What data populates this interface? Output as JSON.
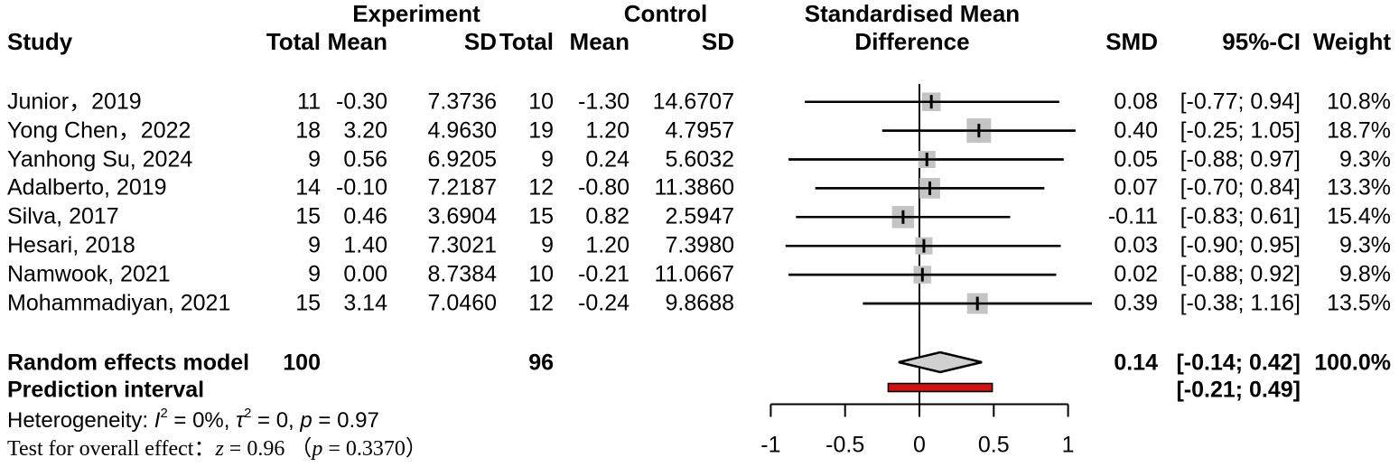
{
  "header": {
    "row1": {
      "experiment_group": "Experiment",
      "control_group": "Control",
      "plot_title_line1": "Standardised Mean"
    },
    "row2": {
      "study": "Study",
      "exp_total": "Total",
      "exp_mean": "Mean",
      "exp_sd": "SD",
      "ctl_total": "Total",
      "ctl_mean": "Mean",
      "ctl_sd": "SD",
      "plot_title_line2": "Difference",
      "smd": "SMD",
      "ci": "95%-CI",
      "weight": "Weight"
    }
  },
  "chart_data": {
    "type": "forest",
    "title": "Standardised Mean Difference",
    "x_axis": {
      "range": [
        -1,
        1
      ],
      "ticks": [
        -1,
        -0.5,
        0,
        0.5,
        1
      ],
      "tick_labels": [
        "-1",
        "-0.5",
        "0",
        "0.5",
        "1"
      ],
      "reference_line": 0
    },
    "studies": [
      {
        "name": "Junior，2019",
        "exp_total": "11",
        "exp_mean": "-0.30",
        "exp_sd": "7.3736",
        "ctl_total": "10",
        "ctl_mean": "-1.30",
        "ctl_sd": "14.6707",
        "smd": 0.08,
        "ci_low": -0.77,
        "ci_high": 0.94,
        "smd_text": "0.08",
        "ci_text": "[-0.77; 0.94]",
        "weight": 10.8,
        "weight_text": "10.8%"
      },
      {
        "name": "Yong Chen，2022",
        "exp_total": "18",
        "exp_mean": "3.20",
        "exp_sd": "4.9630",
        "ctl_total": "19",
        "ctl_mean": "1.20",
        "ctl_sd": "4.7957",
        "smd": 0.4,
        "ci_low": -0.25,
        "ci_high": 1.05,
        "smd_text": "0.40",
        "ci_text": "[-0.25; 1.05]",
        "weight": 18.7,
        "weight_text": "18.7%"
      },
      {
        "name": "Yanhong Su, 2024",
        "exp_total": "9",
        "exp_mean": "0.56",
        "exp_sd": "6.9205",
        "ctl_total": "9",
        "ctl_mean": "0.24",
        "ctl_sd": "5.6032",
        "smd": 0.05,
        "ci_low": -0.88,
        "ci_high": 0.97,
        "smd_text": "0.05",
        "ci_text": "[-0.88; 0.97]",
        "weight": 9.3,
        "weight_text": "9.3%"
      },
      {
        "name": "Adalberto, 2019",
        "exp_total": "14",
        "exp_mean": "-0.10",
        "exp_sd": "7.2187",
        "ctl_total": "12",
        "ctl_mean": "-0.80",
        "ctl_sd": "11.3860",
        "smd": 0.07,
        "ci_low": -0.7,
        "ci_high": 0.84,
        "smd_text": "0.07",
        "ci_text": "[-0.70; 0.84]",
        "weight": 13.3,
        "weight_text": "13.3%"
      },
      {
        "name": "Silva, 2017",
        "exp_total": "15",
        "exp_mean": "0.46",
        "exp_sd": "3.6904",
        "ctl_total": "15",
        "ctl_mean": "0.82",
        "ctl_sd": "2.5947",
        "smd": -0.11,
        "ci_low": -0.83,
        "ci_high": 0.61,
        "smd_text": "-0.11",
        "ci_text": "[-0.83; 0.61]",
        "weight": 15.4,
        "weight_text": "15.4%"
      },
      {
        "name": "Hesari, 2018",
        "exp_total": "9",
        "exp_mean": "1.40",
        "exp_sd": "7.3021",
        "ctl_total": "9",
        "ctl_mean": "1.20",
        "ctl_sd": "7.3980",
        "smd": 0.03,
        "ci_low": -0.9,
        "ci_high": 0.95,
        "smd_text": "0.03",
        "ci_text": "[-0.90; 0.95]",
        "weight": 9.3,
        "weight_text": "9.3%"
      },
      {
        "name": "Namwook, 2021",
        "exp_total": "9",
        "exp_mean": "0.00",
        "exp_sd": "8.7384",
        "ctl_total": "10",
        "ctl_mean": "-0.21",
        "ctl_sd": "11.0667",
        "smd": 0.02,
        "ci_low": -0.88,
        "ci_high": 0.92,
        "smd_text": "0.02",
        "ci_text": "[-0.88; 0.92]",
        "weight": 9.8,
        "weight_text": "9.8%"
      },
      {
        "name": "Mohammadiyan, 2021",
        "exp_total": "15",
        "exp_mean": "3.14",
        "exp_sd": "7.0460",
        "ctl_total": "12",
        "ctl_mean": "-0.24",
        "ctl_sd": "9.8688",
        "smd": 0.39,
        "ci_low": -0.38,
        "ci_high": 1.16,
        "smd_text": "0.39",
        "ci_text": "[-0.38; 1.16]",
        "weight": 13.5,
        "weight_text": "13.5%"
      }
    ],
    "summary": {
      "random_effects": {
        "label": "Random effects model",
        "exp_total": "100",
        "ctl_total": "96",
        "smd": 0.14,
        "ci_low": -0.14,
        "ci_high": 0.42,
        "smd_text": "0.14",
        "ci_text": "[-0.14; 0.42]",
        "weight_text": "100.0%"
      },
      "prediction_interval": {
        "label": "Prediction interval",
        "ci_low": -0.21,
        "ci_high": 0.49,
        "ci_text": "[-0.21; 0.49]"
      },
      "heterogeneity_segments": [
        {
          "t": "Heterogeneity: "
        },
        {
          "t": "I",
          "style": "italic"
        },
        {
          "t": "2",
          "style": "sup"
        },
        {
          "t": " = 0%, "
        },
        {
          "t": "τ",
          "style": "italic"
        },
        {
          "t": "2",
          "style": "sup"
        },
        {
          "t": " = 0, "
        },
        {
          "t": "p",
          "style": "italic"
        },
        {
          "t": " = 0.97"
        }
      ],
      "overall_test_segments": [
        {
          "t": "Test for overall effect："
        },
        {
          "t": "z",
          "style": "italic"
        },
        {
          "t": " = 0.96 "
        },
        {
          "t": "（"
        },
        {
          "t": "p",
          "style": "italic"
        },
        {
          "t": " = 0.3370）"
        }
      ]
    },
    "colors": {
      "square": "#c4c4c4",
      "diamond_fill": "#d0d0d0",
      "prediction_bar": "#d01212",
      "line": "#000000",
      "text": "#000000"
    },
    "legend_position": "none",
    "grid": false
  }
}
